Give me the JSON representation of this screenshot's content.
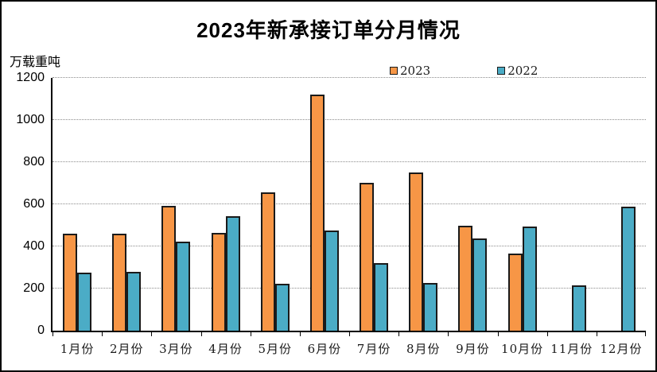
{
  "page": {
    "background_color": "#ffffff",
    "frame_border_color": "#000000"
  },
  "chart_data": {
    "type": "bar",
    "title": "2023年新承接订单分月情况",
    "ylabel": "万载重吨",
    "xlabel": "",
    "categories": [
      "1月份",
      "2月份",
      "3月份",
      "4月份",
      "5月份",
      "6月份",
      "7月份",
      "8月份",
      "9月份",
      "10月份",
      "11月份",
      "12月份"
    ],
    "series": [
      {
        "name": "2023",
        "color": "#F79646",
        "border_color": "#1a1a1a",
        "values": [
          460,
          462,
          591,
          464,
          658,
          1120,
          703,
          752,
          500,
          367,
          0,
          0
        ]
      },
      {
        "name": "2022",
        "color": "#4BACC6",
        "border_color": "#1a1a1a",
        "values": [
          275,
          278,
          424,
          542,
          224,
          474,
          321,
          228,
          436,
          493,
          216,
          589
        ]
      }
    ],
    "ylim": [
      0,
      1200
    ],
    "yticks": [
      0,
      200,
      400,
      600,
      800,
      1000,
      1200
    ],
    "grid": {
      "horizontal": true,
      "style": "dotted",
      "color": "#8c8c8c"
    },
    "axis_color": "#000000",
    "legend_position": "top-center"
  }
}
